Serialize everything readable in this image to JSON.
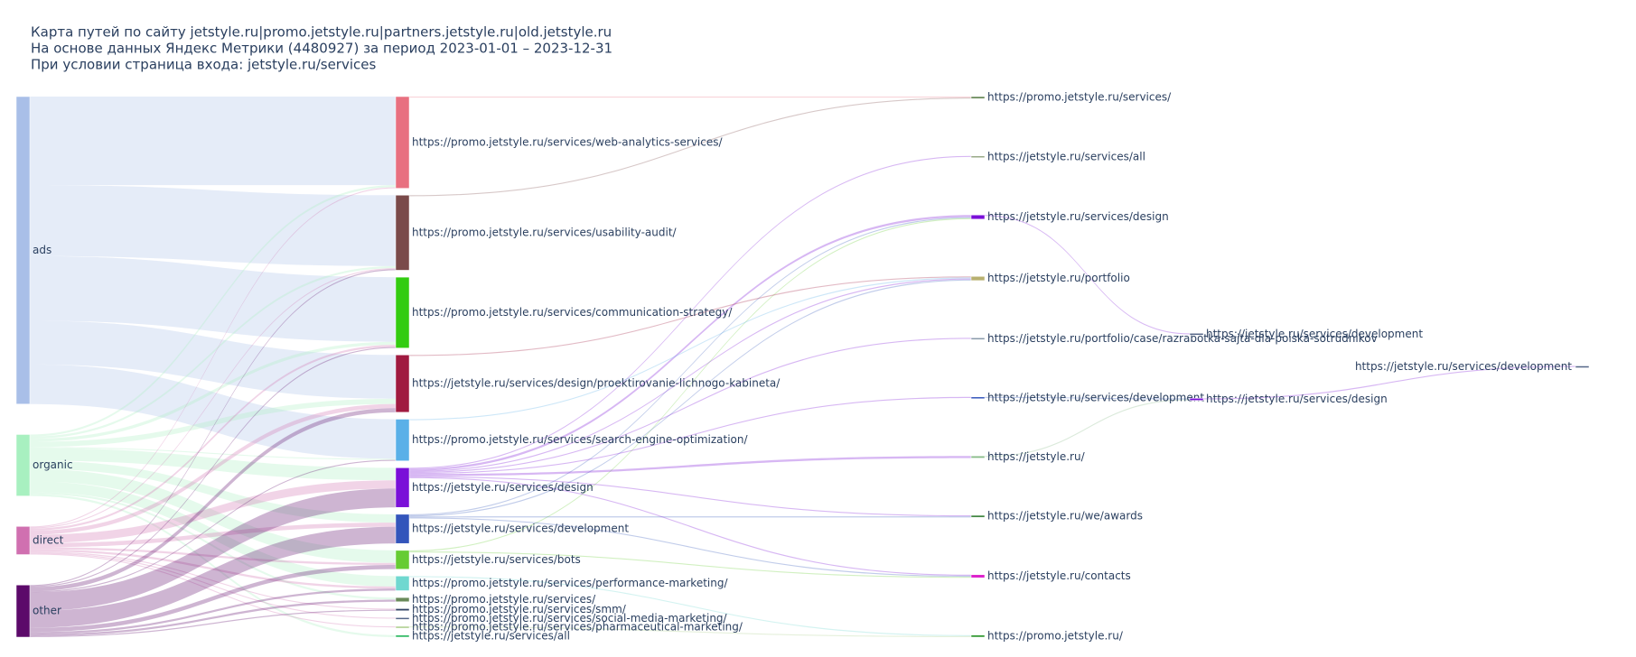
{
  "chart_data": {
    "type": "sankey",
    "title_lines": [
      "Карта путей по сайту jetstyle.ru|promo.jetstyle.ru|partners.jetstyle.ru|old.jetstyle.ru",
      "На основе данных Яндекс Метрики (4480927) за период 2023-01-01 – 2023-12-31",
      "При условии страница входа: jetstyle.ru/services"
    ],
    "link_opacity": 0.3,
    "nodes": [
      {
        "label": "ads",
        "color": "#a9bfe8"
      },
      {
        "label": "organic",
        "color": "#a8f0c0"
      },
      {
        "label": "direct",
        "color": "#d070b0"
      },
      {
        "label": "other",
        "color": "#5c0a6a"
      },
      {
        "label": "https://promo.jetstyle.ru/services/web-analytics-services/",
        "color": "#e87080"
      },
      {
        "label": "https://promo.jetstyle.ru/services/usability-audit/",
        "color": "#7a4a4a"
      },
      {
        "label": "https://promo.jetstyle.ru/services/communication-strategy/",
        "color": "#33cc11"
      },
      {
        "label": "https://jetstyle.ru/services/design/proektirovanie-lichnogo-kabineta/",
        "color": "#a01a40"
      },
      {
        "label": "https://promo.jetstyle.ru/services/search-engine-optimization/",
        "color": "#5ab0e8"
      },
      {
        "label": "https://jetstyle.ru/services/design",
        "color": "#7a10d8"
      },
      {
        "label": "https://jetstyle.ru/services/development",
        "color": "#3355bb"
      },
      {
        "label": "https://jetstyle.ru/services/bots",
        "color": "#66cc33"
      },
      {
        "label": "https://promo.jetstyle.ru/services/performance-marketing/",
        "color": "#70d8d0"
      },
      {
        "label": "https://promo.jetstyle.ru/services/",
        "color": "#6a8a5a"
      },
      {
        "label": "https://promo.jetstyle.ru/services/smm/",
        "color": "#334466"
      },
      {
        "label": "https://promo.jetstyle.ru/services/social-media-marketing/",
        "color": "#556688"
      },
      {
        "label": "https://promo.jetstyle.ru/services/pharmaceutical-marketing/",
        "color": "#aacc88"
      },
      {
        "label": "https://jetstyle.ru/services/all",
        "color": "#33bb66"
      },
      {
        "label": "https://promo.jetstyle.ru/services/",
        "color": "#6a8a5a"
      },
      {
        "label": "https://jetstyle.ru/services/all",
        "color": "#99aa88"
      },
      {
        "label": "https://jetstyle.ru/services/design",
        "color": "#7a10d8"
      },
      {
        "label": "https://jetstyle.ru/portfolio",
        "color": "#b8b070"
      },
      {
        "label": "https://jetstyle.ru/portfolio/case/razrabotka-sajta-dla-poiska-sotrudnikov",
        "color": "#8899aa"
      },
      {
        "label": "https://jetstyle.ru/services/development",
        "color": "#3355bb"
      },
      {
        "label": "https://jetstyle.ru/",
        "color": "#88bb88"
      },
      {
        "label": "https://jetstyle.ru/we/awards",
        "color": "#448844"
      },
      {
        "label": "https://jetstyle.ru/contacts",
        "color": "#dd22cc"
      },
      {
        "label": "https://promo.jetstyle.ru/",
        "color": "#339933"
      },
      {
        "label": "https://jetstyle.ru/services/development",
        "color": "#556688"
      },
      {
        "label": "https://jetstyle.ru/services/design",
        "color": "#7a10d8"
      },
      {
        "label": "https://jetstyle.ru/services/development",
        "color": "#556688"
      }
    ],
    "links": [
      {
        "source": 0,
        "target": 4,
        "value": 85
      },
      {
        "source": 0,
        "target": 5,
        "value": 68
      },
      {
        "source": 0,
        "target": 6,
        "value": 62
      },
      {
        "source": 0,
        "target": 7,
        "value": 42
      },
      {
        "source": 0,
        "target": 8,
        "value": 38
      },
      {
        "source": 1,
        "target": 4,
        "value": 2
      },
      {
        "source": 1,
        "target": 5,
        "value": 2
      },
      {
        "source": 1,
        "target": 6,
        "value": 3
      },
      {
        "source": 1,
        "target": 7,
        "value": 5
      },
      {
        "source": 1,
        "target": 8,
        "value": 1
      },
      {
        "source": 1,
        "target": 9,
        "value": 12
      },
      {
        "source": 1,
        "target": 10,
        "value": 8
      },
      {
        "source": 1,
        "target": 11,
        "value": 12
      },
      {
        "source": 1,
        "target": 12,
        "value": 10
      },
      {
        "source": 1,
        "target": 13,
        "value": 2
      },
      {
        "source": 1,
        "target": 17,
        "value": 2
      },
      {
        "source": 2,
        "target": 4,
        "value": 1
      },
      {
        "source": 2,
        "target": 5,
        "value": 1
      },
      {
        "source": 2,
        "target": 6,
        "value": 2
      },
      {
        "source": 2,
        "target": 7,
        "value": 4
      },
      {
        "source": 2,
        "target": 9,
        "value": 8
      },
      {
        "source": 2,
        "target": 10,
        "value": 4
      },
      {
        "source": 2,
        "target": 11,
        "value": 2
      },
      {
        "source": 2,
        "target": 12,
        "value": 2
      },
      {
        "source": 2,
        "target": 14,
        "value": 1
      },
      {
        "source": 2,
        "target": 15,
        "value": 1
      },
      {
        "source": 2,
        "target": 16,
        "value": 1
      },
      {
        "source": 3,
        "target": 5,
        "value": 1
      },
      {
        "source": 3,
        "target": 6,
        "value": 1
      },
      {
        "source": 3,
        "target": 7,
        "value": 4
      },
      {
        "source": 3,
        "target": 8,
        "value": 1
      },
      {
        "source": 3,
        "target": 9,
        "value": 18
      },
      {
        "source": 3,
        "target": 10,
        "value": 16
      },
      {
        "source": 3,
        "target": 11,
        "value": 4
      },
      {
        "source": 3,
        "target": 12,
        "value": 2
      },
      {
        "source": 3,
        "target": 13,
        "value": 2
      },
      {
        "source": 3,
        "target": 14,
        "value": 1
      },
      {
        "source": 4,
        "target": 18,
        "value": 1
      },
      {
        "source": 5,
        "target": 18,
        "value": 1
      },
      {
        "source": 9,
        "target": 19,
        "value": 1
      },
      {
        "source": 9,
        "target": 20,
        "value": 2
      },
      {
        "source": 10,
        "target": 20,
        "value": 1
      },
      {
        "source": 11,
        "target": 20,
        "value": 1
      },
      {
        "source": 7,
        "target": 21,
        "value": 1
      },
      {
        "source": 8,
        "target": 21,
        "value": 1
      },
      {
        "source": 9,
        "target": 21,
        "value": 1
      },
      {
        "source": 10,
        "target": 21,
        "value": 1
      },
      {
        "source": 9,
        "target": 22,
        "value": 1
      },
      {
        "source": 9,
        "target": 23,
        "value": 1
      },
      {
        "source": 9,
        "target": 24,
        "value": 2
      },
      {
        "source": 9,
        "target": 25,
        "value": 1
      },
      {
        "source": 10,
        "target": 25,
        "value": 1
      },
      {
        "source": 9,
        "target": 26,
        "value": 1
      },
      {
        "source": 10,
        "target": 26,
        "value": 1
      },
      {
        "source": 11,
        "target": 26,
        "value": 1
      },
      {
        "source": 12,
        "target": 27,
        "value": 1
      },
      {
        "source": 16,
        "target": 27,
        "value": 1
      },
      {
        "source": 20,
        "target": 28,
        "value": 1
      },
      {
        "source": 23,
        "target": 29,
        "value": 1
      },
      {
        "source": 24,
        "target": 29,
        "value": 1
      },
      {
        "source": 29,
        "target": 30,
        "value": 1
      }
    ]
  }
}
